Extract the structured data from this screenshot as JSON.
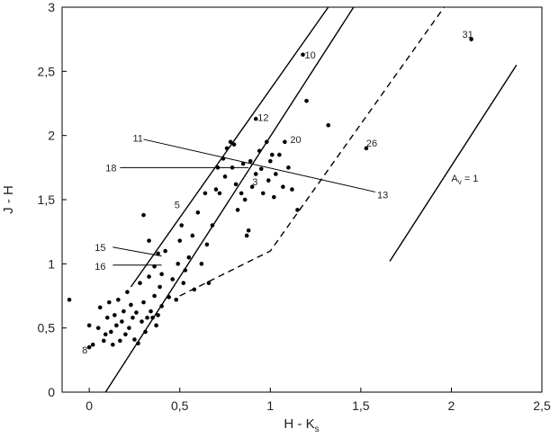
{
  "chart_data": {
    "type": "scatter",
    "title": "",
    "xlabel": "H - K",
    "xlabel_subscript": "s",
    "ylabel": "J - H",
    "xlim": [
      -0.15,
      2.5
    ],
    "ylim": [
      0,
      3
    ],
    "x_ticks": [
      0,
      0.5,
      1,
      1.5,
      2,
      2.5
    ],
    "x_tick_labels": [
      "0",
      "0,5",
      "1",
      "1,5",
      "2",
      "2,5"
    ],
    "y_ticks": [
      0,
      0.5,
      1,
      1.5,
      2,
      2.5,
      3
    ],
    "y_tick_labels": [
      "0",
      "0,5",
      "1",
      "1,5",
      "2",
      "2,5",
      "3"
    ],
    "grid": false,
    "points": [
      [
        -0.11,
        0.72
      ],
      [
        0.0,
        0.35
      ],
      [
        0.02,
        0.37
      ],
      [
        0.0,
        0.52
      ],
      [
        0.05,
        0.5
      ],
      [
        0.06,
        0.66
      ],
      [
        0.08,
        0.4
      ],
      [
        0.09,
        0.45
      ],
      [
        0.1,
        0.58
      ],
      [
        0.11,
        0.7
      ],
      [
        0.12,
        0.47
      ],
      [
        0.13,
        0.37
      ],
      [
        0.14,
        0.6
      ],
      [
        0.15,
        0.52
      ],
      [
        0.16,
        0.72
      ],
      [
        0.17,
        0.4
      ],
      [
        0.18,
        0.55
      ],
      [
        0.19,
        0.63
      ],
      [
        0.2,
        0.45
      ],
      [
        0.21,
        0.78
      ],
      [
        0.22,
        0.5
      ],
      [
        0.23,
        0.68
      ],
      [
        0.24,
        0.58
      ],
      [
        0.25,
        0.41
      ],
      [
        0.26,
        0.62
      ],
      [
        0.27,
        0.38
      ],
      [
        0.28,
        0.85
      ],
      [
        0.29,
        0.55
      ],
      [
        0.3,
        0.7
      ],
      [
        0.31,
        0.47
      ],
      [
        0.32,
        0.58
      ],
      [
        0.33,
        0.9
      ],
      [
        0.34,
        0.63
      ],
      [
        0.35,
        0.58
      ],
      [
        0.36,
        0.75
      ],
      [
        0.37,
        0.52
      ],
      [
        0.38,
        0.6
      ],
      [
        0.39,
        0.82
      ],
      [
        0.4,
        0.67
      ],
      [
        0.3,
        1.38
      ],
      [
        0.33,
        1.18
      ],
      [
        0.36,
        0.98
      ],
      [
        0.38,
        1.08
      ],
      [
        0.4,
        0.92
      ],
      [
        0.42,
        1.1
      ],
      [
        0.44,
        0.74
      ],
      [
        0.46,
        0.88
      ],
      [
        0.48,
        0.72
      ],
      [
        0.49,
        1.0
      ],
      [
        0.5,
        1.18
      ],
      [
        0.51,
        1.3
      ],
      [
        0.52,
        0.85
      ],
      [
        0.53,
        0.95
      ],
      [
        0.55,
        1.05
      ],
      [
        0.57,
        1.22
      ],
      [
        0.58,
        0.8
      ],
      [
        0.6,
        1.4
      ],
      [
        0.62,
        1.0
      ],
      [
        0.64,
        1.55
      ],
      [
        0.65,
        1.15
      ],
      [
        0.66,
        0.85
      ],
      [
        0.68,
        1.3
      ],
      [
        0.7,
        1.58
      ],
      [
        0.71,
        1.75
      ],
      [
        0.72,
        1.55
      ],
      [
        0.74,
        1.82
      ],
      [
        0.75,
        1.68
      ],
      [
        0.76,
        1.9
      ],
      [
        0.78,
        1.95
      ],
      [
        0.79,
        1.75
      ],
      [
        0.8,
        1.93
      ],
      [
        0.81,
        1.62
      ],
      [
        0.82,
        1.42
      ],
      [
        0.84,
        1.55
      ],
      [
        0.85,
        1.78
      ],
      [
        0.86,
        1.5
      ],
      [
        0.87,
        1.22
      ],
      [
        0.88,
        1.26
      ],
      [
        0.89,
        1.8
      ],
      [
        0.9,
        1.6
      ],
      [
        0.92,
        1.7
      ],
      [
        0.94,
        1.88
      ],
      [
        0.95,
        1.74
      ],
      [
        0.96,
        1.55
      ],
      [
        0.98,
        1.95
      ],
      [
        0.99,
        1.65
      ],
      [
        1.0,
        1.8
      ],
      [
        1.01,
        1.85
      ],
      [
        1.02,
        1.52
      ],
      [
        1.03,
        1.7
      ],
      [
        1.05,
        1.85
      ],
      [
        1.07,
        1.6
      ],
      [
        1.08,
        1.95
      ],
      [
        1.1,
        1.75
      ],
      [
        1.12,
        1.58
      ],
      [
        0.92,
        2.13
      ],
      [
        1.18,
        2.63
      ],
      [
        1.2,
        2.27
      ],
      [
        1.15,
        1.42
      ],
      [
        1.32,
        2.08
      ],
      [
        1.53,
        1.9
      ],
      [
        2.11,
        2.75
      ]
    ],
    "lines": [
      {
        "style": "solid",
        "x": [
          0.23,
          1.32
        ],
        "y": [
          0.82,
          3.0
        ]
      },
      {
        "style": "solid",
        "x": [
          0.09,
          1.46
        ],
        "y": [
          0.0,
          3.0
        ]
      },
      {
        "style": "dashed",
        "x": [
          0.5,
          1.0,
          1.96
        ],
        "y": [
          0.75,
          1.1,
          3.0
        ]
      },
      {
        "style": "solid",
        "x": [
          1.66,
          2.36
        ],
        "y": [
          1.02,
          2.55
        ]
      }
    ],
    "labels": [
      {
        "text": "10",
        "x": 1.19,
        "y": 2.63,
        "anchor": "start"
      },
      {
        "text": "12",
        "x": 0.93,
        "y": 2.14,
        "anchor": "start"
      },
      {
        "text": "20",
        "x": 1.11,
        "y": 1.97,
        "anchor": "start"
      },
      {
        "text": "26",
        "x": 1.53,
        "y": 1.94,
        "anchor": "start"
      },
      {
        "text": "31",
        "x": 2.06,
        "y": 2.79,
        "anchor": "start"
      },
      {
        "text": "13",
        "x": 1.59,
        "y": 1.54,
        "anchor": "start"
      },
      {
        "text": "11",
        "x": 0.24,
        "y": 1.98,
        "anchor": "start"
      },
      {
        "text": "18",
        "x": 0.09,
        "y": 1.75,
        "anchor": "start"
      },
      {
        "text": "3",
        "x": 0.9,
        "y": 1.64,
        "anchor": "start"
      },
      {
        "text": "5",
        "x": 0.47,
        "y": 1.46,
        "anchor": "start"
      },
      {
        "text": "15",
        "x": 0.03,
        "y": 1.13,
        "anchor": "start"
      },
      {
        "text": "16",
        "x": 0.03,
        "y": 0.98,
        "anchor": "start"
      },
      {
        "text": "8",
        "x": -0.04,
        "y": 0.33,
        "anchor": "start"
      }
    ],
    "leaders": [
      {
        "x1": 0.3,
        "y1": 1.97,
        "x2": 1.58,
        "y2": 1.56
      },
      {
        "x1": 0.17,
        "y1": 1.75,
        "x2": 0.88,
        "y2": 1.75
      },
      {
        "x1": 0.13,
        "y1": 1.13,
        "x2": 0.4,
        "y2": 1.06
      },
      {
        "x1": 0.13,
        "y1": 0.99,
        "x2": 0.4,
        "y2": 0.99
      }
    ],
    "reddening_label": {
      "text": "A",
      "subscript": "v",
      "suffix": " = 1",
      "x": 2.0,
      "y": 1.64
    }
  }
}
